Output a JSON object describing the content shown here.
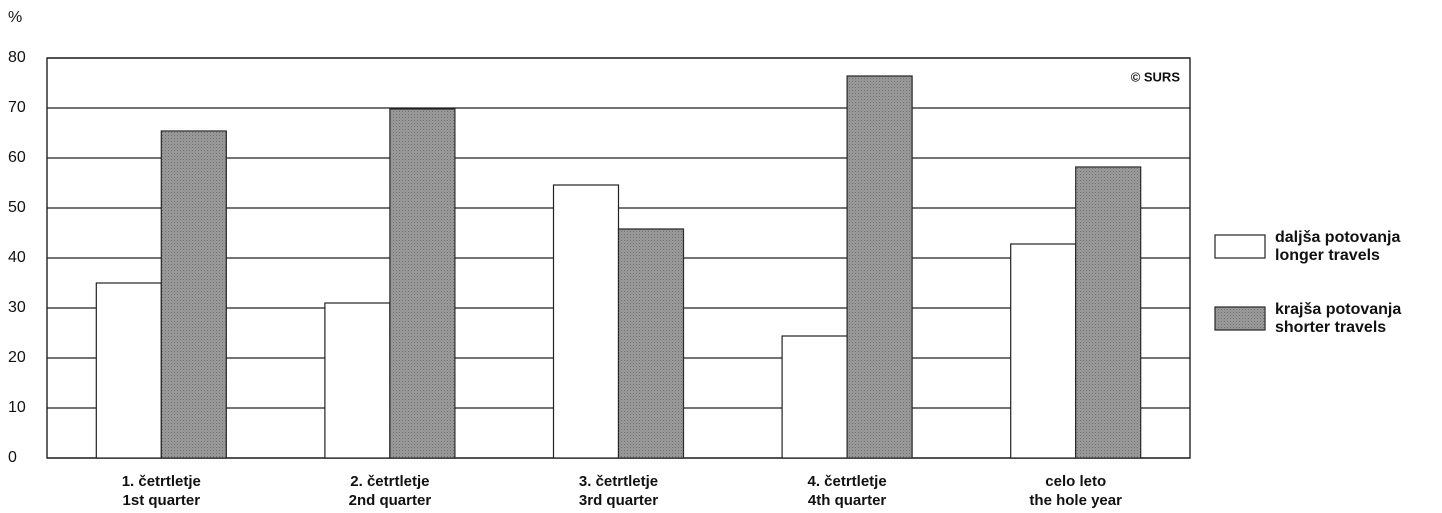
{
  "chart_data": {
    "type": "bar",
    "y_unit": "%",
    "annotation": "© SURS",
    "categories": [
      [
        "1. četrtletje",
        "1st quarter"
      ],
      [
        "2. četrtletje",
        "2nd quarter"
      ],
      [
        "3. četrtletje",
        "3rd quarter"
      ],
      [
        "4. četrtletje",
        "4th quarter"
      ],
      [
        "celo leto",
        "the hole year"
      ]
    ],
    "series": [
      {
        "name": [
          "daljša potovanja",
          "longer travels"
        ],
        "color": "#ffffff",
        "values": [
          35,
          31,
          54.6,
          24.4,
          42.8
        ]
      },
      {
        "name": [
          "krajša potovanja",
          "shorter travels"
        ],
        "color": "#9a9a9a",
        "values": [
          65.4,
          69.8,
          45.8,
          76.4,
          58.2
        ]
      }
    ],
    "ylim": [
      0,
      80
    ],
    "yticks": [
      0,
      10,
      20,
      30,
      40,
      50,
      60,
      70,
      80
    ],
    "grid": true
  }
}
